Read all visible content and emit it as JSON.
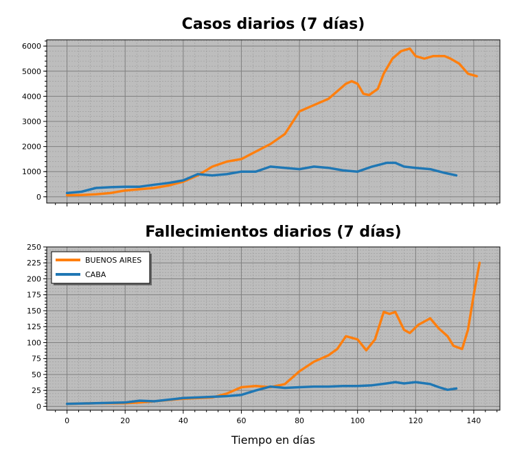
{
  "colors": {
    "buenos_aires": "#ff7f0e",
    "caba": "#1f77b4",
    "plot_bg": "#bdbdbd",
    "grid_major": "#7f7f7f",
    "grid_minor": "#9a9a9a"
  },
  "chart_data": [
    {
      "type": "line",
      "title": "Casos diarios (7 días)",
      "xlabel": "",
      "ylabel": "",
      "xlim": [
        -7,
        149
      ],
      "ylim": [
        -250,
        6250
      ],
      "yticks": [
        0,
        1000,
        2000,
        3000,
        4000,
        5000,
        6000
      ],
      "grid": true,
      "series": [
        {
          "name": "BUENOS AIRES",
          "color": "#ff7f0e",
          "points": [
            [
              0,
              60
            ],
            [
              5,
              70
            ],
            [
              10,
              100
            ],
            [
              15,
              150
            ],
            [
              20,
              250
            ],
            [
              25,
              300
            ],
            [
              30,
              350
            ],
            [
              35,
              450
            ],
            [
              40,
              600
            ],
            [
              45,
              850
            ],
            [
              50,
              1200
            ],
            [
              55,
              1400
            ],
            [
              60,
              1500
            ],
            [
              65,
              1800
            ],
            [
              70,
              2100
            ],
            [
              75,
              2500
            ],
            [
              80,
              3400
            ],
            [
              85,
              3650
            ],
            [
              90,
              3900
            ],
            [
              93,
              4200
            ],
            [
              96,
              4500
            ],
            [
              98,
              4600
            ],
            [
              100,
              4500
            ],
            [
              102,
              4100
            ],
            [
              104,
              4050
            ],
            [
              107,
              4300
            ],
            [
              109,
              4900
            ],
            [
              112,
              5500
            ],
            [
              115,
              5800
            ],
            [
              118,
              5900
            ],
            [
              120,
              5600
            ],
            [
              123,
              5500
            ],
            [
              126,
              5600
            ],
            [
              130,
              5600
            ],
            [
              132,
              5500
            ],
            [
              135,
              5300
            ],
            [
              138,
              4900
            ],
            [
              141,
              4800
            ]
          ]
        },
        {
          "name": "CABA",
          "color": "#1f77b4",
          "points": [
            [
              0,
              150
            ],
            [
              5,
              200
            ],
            [
              10,
              350
            ],
            [
              15,
              380
            ],
            [
              20,
              400
            ],
            [
              25,
              400
            ],
            [
              30,
              480
            ],
            [
              35,
              550
            ],
            [
              40,
              650
            ],
            [
              45,
              900
            ],
            [
              50,
              850
            ],
            [
              55,
              900
            ],
            [
              60,
              1000
            ],
            [
              65,
              1000
            ],
            [
              70,
              1200
            ],
            [
              75,
              1150
            ],
            [
              80,
              1100
            ],
            [
              85,
              1200
            ],
            [
              90,
              1150
            ],
            [
              95,
              1050
            ],
            [
              100,
              1000
            ],
            [
              105,
              1200
            ],
            [
              110,
              1350
            ],
            [
              113,
              1350
            ],
            [
              116,
              1200
            ],
            [
              120,
              1150
            ],
            [
              125,
              1100
            ],
            [
              130,
              950
            ],
            [
              134,
              850
            ]
          ]
        }
      ]
    },
    {
      "type": "line",
      "title": "Fallecimientos diarios (7 días)",
      "xlabel": "Tiempo en días",
      "ylabel": "",
      "xlim": [
        -7,
        149
      ],
      "ylim": [
        -6,
        250
      ],
      "xticks": [
        0,
        20,
        40,
        60,
        80,
        100,
        120,
        140
      ],
      "yticks": [
        0,
        25,
        50,
        75,
        100,
        125,
        150,
        175,
        200,
        225,
        250
      ],
      "grid": true,
      "legend": "top-left",
      "series": [
        {
          "name": "BUENOS AIRES",
          "color": "#ff7f0e",
          "points": [
            [
              0,
              4
            ],
            [
              10,
              5
            ],
            [
              20,
              5
            ],
            [
              25,
              6
            ],
            [
              30,
              8
            ],
            [
              40,
              12
            ],
            [
              50,
              14
            ],
            [
              55,
              20
            ],
            [
              60,
              30
            ],
            [
              65,
              32
            ],
            [
              70,
              30
            ],
            [
              75,
              35
            ],
            [
              80,
              55
            ],
            [
              85,
              70
            ],
            [
              90,
              80
            ],
            [
              93,
              90
            ],
            [
              96,
              110
            ],
            [
              100,
              105
            ],
            [
              103,
              88
            ],
            [
              106,
              105
            ],
            [
              109,
              148
            ],
            [
              111,
              145
            ],
            [
              113,
              148
            ],
            [
              116,
              120
            ],
            [
              118,
              115
            ],
            [
              121,
              128
            ],
            [
              125,
              138
            ],
            [
              128,
              122
            ],
            [
              131,
              110
            ],
            [
              133,
              95
            ],
            [
              136,
              90
            ],
            [
              138,
              120
            ],
            [
              140,
              175
            ],
            [
              142,
              225
            ]
          ]
        },
        {
          "name": "CABA",
          "color": "#1f77b4",
          "points": [
            [
              0,
              4
            ],
            [
              10,
              5
            ],
            [
              20,
              6
            ],
            [
              25,
              9
            ],
            [
              30,
              8
            ],
            [
              40,
              13
            ],
            [
              50,
              15
            ],
            [
              55,
              16
            ],
            [
              60,
              18
            ],
            [
              65,
              25
            ],
            [
              70,
              31
            ],
            [
              75,
              29
            ],
            [
              80,
              30
            ],
            [
              85,
              31
            ],
            [
              90,
              31
            ],
            [
              95,
              32
            ],
            [
              100,
              32
            ],
            [
              105,
              33
            ],
            [
              110,
              36
            ],
            [
              113,
              38
            ],
            [
              116,
              36
            ],
            [
              120,
              38
            ],
            [
              125,
              35
            ],
            [
              128,
              30
            ],
            [
              131,
              26
            ],
            [
              134,
              28
            ]
          ]
        }
      ]
    }
  ]
}
